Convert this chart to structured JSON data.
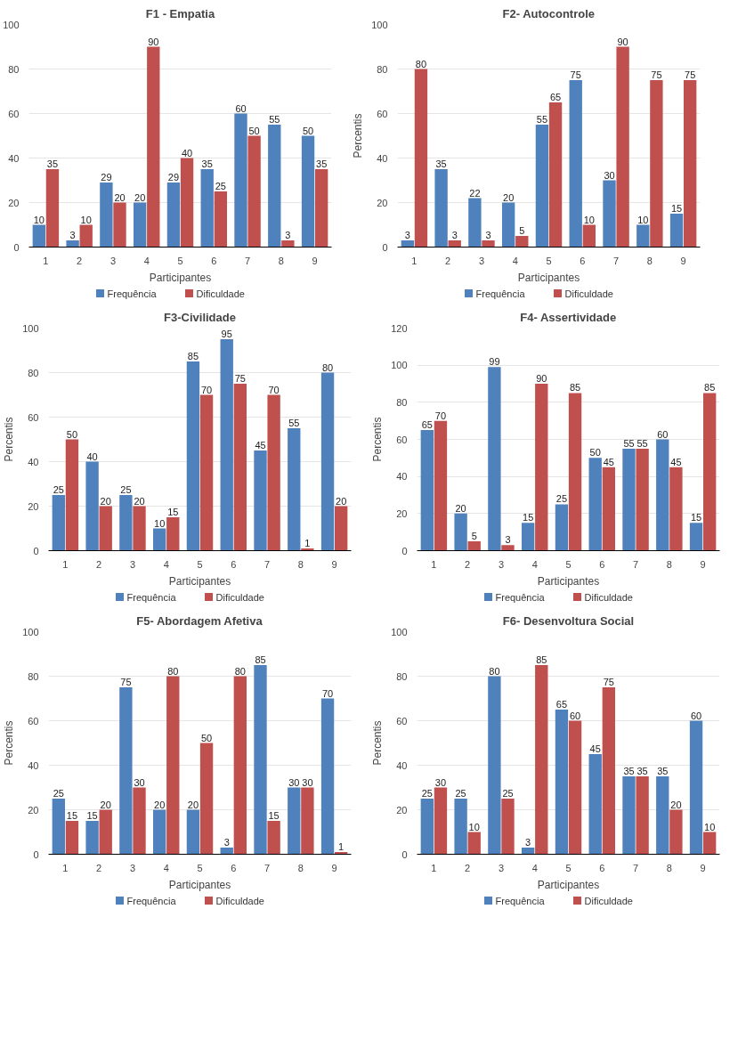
{
  "chart_data": [
    {
      "type": "bar",
      "title": "F1 - Empatia",
      "xlabel": "Participantes",
      "categories": [
        "1",
        "2",
        "3",
        "4",
        "5",
        "6",
        "7",
        "8",
        "9"
      ],
      "ylim": [
        0,
        100
      ],
      "yticks": [
        0,
        20,
        40,
        60,
        80,
        100
      ],
      "grid": "y",
      "legend": "bottom",
      "data_labels": true,
      "series": [
        {
          "name": "Frequência",
          "color": "#4f81bd",
          "values": [
            10,
            3,
            29,
            20,
            29,
            35,
            60,
            55,
            50
          ]
        },
        {
          "name": "Dificuldade",
          "color": "#c0504d",
          "values": [
            35,
            10,
            20,
            90,
            40,
            25,
            50,
            3,
            35
          ]
        }
      ]
    },
    {
      "type": "bar",
      "title": "F2- Autocontrole",
      "xlabel": "Participantes",
      "ylabel": "Percentis",
      "categories": [
        "1",
        "2",
        "3",
        "4",
        "5",
        "6",
        "7",
        "8",
        "9"
      ],
      "ylim": [
        0,
        100
      ],
      "yticks": [
        0,
        20,
        40,
        60,
        80,
        100
      ],
      "grid": "y",
      "legend": "bottom",
      "data_labels": true,
      "series": [
        {
          "name": "Frequência",
          "color": "#4f81bd",
          "values": [
            3,
            35,
            22,
            20,
            55,
            75,
            30,
            10,
            15
          ]
        },
        {
          "name": "Dificuldade",
          "color": "#c0504d",
          "values": [
            80,
            3,
            3,
            5,
            65,
            10,
            90,
            75,
            75
          ]
        }
      ]
    },
    {
      "type": "bar",
      "title": "F3-Civilidade",
      "xlabel": "Participantes",
      "ylabel": "Percentis",
      "categories": [
        "1",
        "2",
        "3",
        "4",
        "5",
        "6",
        "7",
        "8",
        "9"
      ],
      "ylim": [
        0,
        100
      ],
      "yticks": [
        0,
        20,
        40,
        60,
        80,
        100
      ],
      "grid": "y",
      "legend": "bottom",
      "data_labels": true,
      "series": [
        {
          "name": "Frequência",
          "color": "#4f81bd",
          "values": [
            25,
            40,
            25,
            10,
            85,
            95,
            45,
            55,
            80
          ]
        },
        {
          "name": "Dificuldade",
          "color": "#c0504d",
          "values": [
            50,
            20,
            20,
            15,
            70,
            75,
            70,
            1,
            20
          ]
        }
      ]
    },
    {
      "type": "bar",
      "title": "F4- Assertividade",
      "xlabel": "Participantes",
      "ylabel": "Percentis",
      "categories": [
        "1",
        "2",
        "3",
        "4",
        "5",
        "6",
        "7",
        "8",
        "9"
      ],
      "ylim": [
        0,
        120
      ],
      "yticks": [
        0,
        20,
        40,
        60,
        80,
        100,
        120
      ],
      "grid": "y",
      "legend": "bottom",
      "data_labels": true,
      "series": [
        {
          "name": "Frequência",
          "color": "#4f81bd",
          "values": [
            65,
            20,
            99,
            15,
            25,
            50,
            55,
            60,
            15
          ]
        },
        {
          "name": "Dificuldade",
          "color": "#c0504d",
          "values": [
            70,
            5,
            3,
            90,
            85,
            45,
            55,
            45,
            85
          ]
        }
      ]
    },
    {
      "type": "bar",
      "title": "F5- Abordagem Afetiva",
      "xlabel": "Participantes",
      "ylabel": "Percentis",
      "categories": [
        "1",
        "2",
        "3",
        "4",
        "5",
        "6",
        "7",
        "8",
        "9"
      ],
      "ylim": [
        0,
        100
      ],
      "yticks": [
        0,
        20,
        40,
        60,
        80,
        100
      ],
      "grid": "y",
      "legend": "bottom",
      "data_labels": true,
      "series": [
        {
          "name": "Frequência",
          "color": "#4f81bd",
          "values": [
            25,
            15,
            75,
            20,
            20,
            3,
            85,
            30,
            70
          ]
        },
        {
          "name": "Dificuldade",
          "color": "#c0504d",
          "values": [
            15,
            20,
            30,
            80,
            50,
            80,
            15,
            30,
            1
          ]
        }
      ]
    },
    {
      "type": "bar",
      "title": "F6- Desenvoltura Social",
      "xlabel": "Participantes",
      "ylabel": "Percentis",
      "categories": [
        "1",
        "2",
        "3",
        "4",
        "5",
        "6",
        "7",
        "8",
        "9"
      ],
      "ylim": [
        0,
        100
      ],
      "yticks": [
        0,
        20,
        40,
        60,
        80,
        100
      ],
      "grid": "y",
      "legend": "bottom",
      "data_labels": true,
      "series": [
        {
          "name": "Frequência",
          "color": "#4f81bd",
          "values": [
            25,
            25,
            80,
            3,
            65,
            45,
            35,
            35,
            60
          ]
        },
        {
          "name": "Dificuldade",
          "color": "#c0504d",
          "values": [
            30,
            10,
            25,
            85,
            60,
            75,
            35,
            20,
            10
          ]
        }
      ]
    }
  ]
}
